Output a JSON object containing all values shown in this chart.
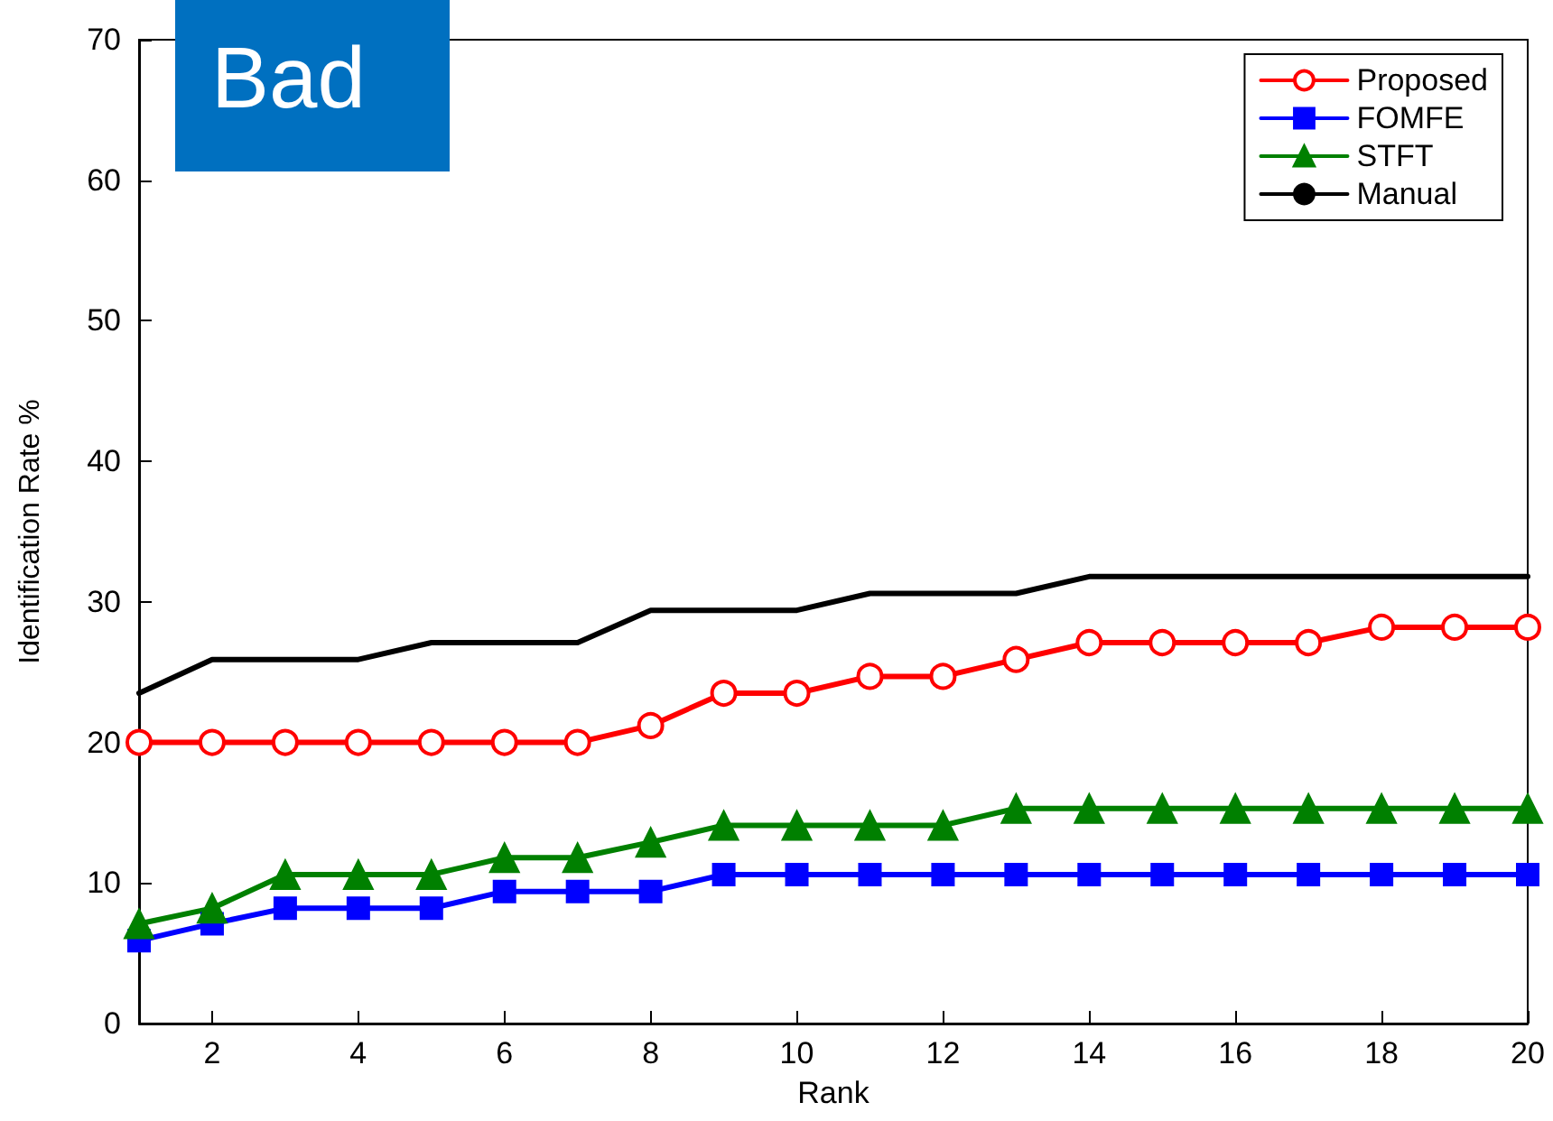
{
  "chart_data": {
    "type": "line",
    "xlabel": "Rank",
    "ylabel": "Identification Rate %",
    "annotations": [
      "Bad"
    ],
    "x": [
      1,
      2,
      3,
      4,
      5,
      6,
      7,
      8,
      9,
      10,
      11,
      12,
      13,
      14,
      15,
      16,
      17,
      18,
      19,
      20
    ],
    "xlim": [
      1,
      20
    ],
    "xticks": [
      2,
      4,
      6,
      8,
      10,
      12,
      14,
      16,
      18,
      20
    ],
    "ylim": [
      0,
      70
    ],
    "yticks": [
      0,
      10,
      20,
      30,
      40,
      50,
      60,
      70
    ],
    "grid": false,
    "legend": "top right",
    "series": [
      {
        "name": "Proposed",
        "color": "#ff0000",
        "marker": "circle",
        "values": [
          20,
          20,
          20,
          20,
          20,
          20,
          20,
          21.2,
          23.5,
          23.5,
          24.7,
          24.7,
          25.9,
          27.1,
          27.1,
          27.1,
          27.1,
          28.2,
          28.2,
          28.2
        ]
      },
      {
        "name": "FOMFE",
        "color": "#0000ff",
        "marker": "square",
        "values": [
          5.9,
          7.1,
          8.2,
          8.2,
          8.2,
          9.4,
          9.4,
          9.4,
          10.6,
          10.6,
          10.6,
          10.6,
          10.6,
          10.6,
          10.6,
          10.6,
          10.6,
          10.6,
          10.6,
          10.6
        ]
      },
      {
        "name": "STFT",
        "color": "#008000",
        "marker": "triangle",
        "values": [
          7.1,
          8.2,
          10.6,
          10.6,
          10.6,
          11.8,
          11.8,
          12.9,
          14.1,
          14.1,
          14.1,
          14.1,
          15.3,
          15.3,
          15.3,
          15.3,
          15.3,
          15.3,
          15.3,
          15.3
        ]
      },
      {
        "name": "Manual",
        "color": "#000000",
        "marker": "none",
        "values": [
          23.5,
          25.9,
          25.9,
          25.9,
          27.1,
          27.1,
          27.1,
          29.4,
          29.4,
          29.4,
          30.6,
          30.6,
          30.6,
          31.8,
          31.8,
          31.8,
          31.8,
          31.8,
          31.8,
          31.8
        ]
      }
    ]
  }
}
